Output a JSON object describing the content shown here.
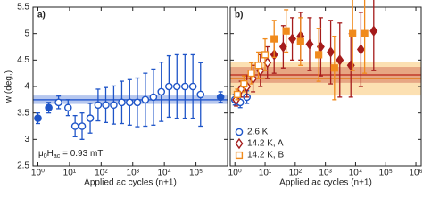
{
  "chart_data": [
    {
      "type": "scatter",
      "panel_label": "a)",
      "xlog": true,
      "xlim": [
        0.7,
        1000000
      ],
      "ylim": [
        2.5,
        5.5
      ],
      "yticks": [
        2.5,
        3,
        3.5,
        4,
        4.5,
        5,
        5.5
      ],
      "show_ytick_labels": true,
      "ylabel": "w (deg.)",
      "xlabel": "Applied ac cycles (n+1)",
      "xticks": [
        {
          "value": 1,
          "label": "10⁰"
        },
        {
          "value": 10,
          "label": "10¹"
        },
        {
          "value": 100,
          "label": "10²"
        },
        {
          "value": 1000,
          "label": "10³"
        },
        {
          "value": 10000,
          "label": "10⁴"
        },
        {
          "value": 100000,
          "label": "10⁵"
        }
      ],
      "field_label": [
        "μ",
        "0",
        "H",
        "ac",
        " = 0.93 mT"
      ],
      "bands": [
        {
          "color": "#2d5fd0",
          "center": 3.75,
          "half_width": 0.08
        }
      ],
      "series": [
        {
          "name": "2.6 K",
          "color": "#1f55c8",
          "marker": "circle",
          "x": [
            1,
            2.2,
            4.5,
            9,
            15,
            25,
            45,
            80,
            140,
            250,
            450,
            800,
            1400,
            2500,
            4500,
            8000,
            14000,
            25000,
            45000,
            80000,
            140000,
            600000
          ],
          "values": [
            3.4,
            3.6,
            3.7,
            3.6,
            3.25,
            3.25,
            3.4,
            3.65,
            3.65,
            3.65,
            3.7,
            3.7,
            3.7,
            3.75,
            3.8,
            3.9,
            4.0,
            4.0,
            4.0,
            4.0,
            3.85,
            3.8
          ],
          "errors": [
            0.1,
            0.1,
            0.12,
            0.15,
            0.2,
            0.25,
            0.28,
            0.3,
            0.33,
            0.36,
            0.4,
            0.43,
            0.46,
            0.5,
            0.53,
            0.56,
            0.58,
            0.6,
            0.6,
            0.6,
            0.6,
            0.1
          ],
          "filled": [
            true,
            true,
            false,
            false,
            false,
            false,
            false,
            false,
            false,
            false,
            false,
            false,
            false,
            false,
            false,
            false,
            false,
            false,
            false,
            false,
            false,
            true
          ]
        }
      ]
    },
    {
      "type": "scatter",
      "panel_label": "b)",
      "xlog": true,
      "xlim": [
        0.7,
        1500000
      ],
      "ylim": [
        2.5,
        5.5
      ],
      "yticks": [
        2.5,
        3,
        3.5,
        4,
        4.5,
        5,
        5.5
      ],
      "show_ytick_labels": false,
      "xlabel": "Applied ac cycles (n+1)",
      "legend": "lower left",
      "xticks": [
        {
          "value": 1,
          "label": "10⁰"
        },
        {
          "value": 10,
          "label": "10¹"
        },
        {
          "value": 100,
          "label": "10²"
        },
        {
          "value": 1000,
          "label": "10³"
        },
        {
          "value": 10000,
          "label": "10⁴"
        },
        {
          "value": 100000,
          "label": "10⁵"
        },
        {
          "value": 1000000,
          "label": "10⁶"
        }
      ],
      "bands": [
        {
          "color": "#f5a623",
          "center": 4.15,
          "half_width": 0.32
        },
        {
          "color": "#c0392b",
          "center": 4.22,
          "half_width": 0.15
        }
      ],
      "series": [
        {
          "name": "2.6 K",
          "color": "#1f55c8",
          "marker": "circle",
          "x": [
            1,
            1.5,
            2.5
          ],
          "values": [
            3.75,
            3.7,
            3.8
          ],
          "errors": [
            0.1,
            0.1,
            0.12
          ],
          "filled": false
        },
        {
          "name": "14.2 K, A",
          "color": "#a51c1c",
          "marker": "diamond",
          "x": [
            1.1,
            1.6,
            2.5,
            4,
            7,
            12,
            20,
            40,
            80,
            150,
            300,
            700,
            1500,
            3000,
            7000,
            15000,
            40000
          ],
          "values": [
            3.75,
            3.95,
            4.0,
            4.15,
            4.3,
            4.45,
            4.6,
            4.75,
            4.9,
            4.95,
            4.8,
            4.75,
            4.65,
            4.5,
            4.4,
            4.7,
            5.05
          ],
          "errors": [
            0.12,
            0.15,
            0.2,
            0.25,
            0.3,
            0.3,
            0.35,
            0.4,
            0.4,
            0.45,
            0.5,
            0.55,
            0.6,
            0.7,
            0.6,
            0.7,
            0.75
          ],
          "filled": [
            false,
            false,
            false,
            false,
            false,
            false,
            true,
            true,
            true,
            true,
            true,
            true,
            true,
            true,
            true,
            true,
            true
          ]
        },
        {
          "name": "14.2 K, B",
          "color": "#f08a1c",
          "marker": "square",
          "x": [
            1.2,
            2,
            3.5,
            6,
            10,
            20,
            50,
            150,
            600,
            2000,
            8000,
            20000
          ],
          "values": [
            3.85,
            4.05,
            4.25,
            4.4,
            4.6,
            4.9,
            5.05,
            4.85,
            4.6,
            4.35,
            5.0,
            5.0
          ],
          "errors": [
            0.1,
            0.15,
            0.2,
            0.25,
            0.3,
            0.35,
            0.4,
            0.45,
            0.5,
            0.6,
            0.7,
            0.75
          ],
          "filled": [
            false,
            false,
            false,
            false,
            false,
            true,
            true,
            true,
            true,
            true,
            true,
            true
          ]
        }
      ]
    }
  ]
}
